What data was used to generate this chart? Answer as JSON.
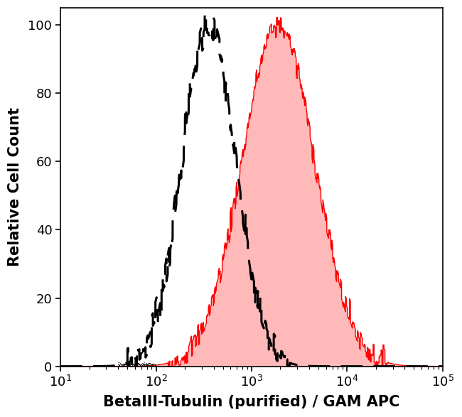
{
  "title": "",
  "xlabel": "BetaIII-Tubulin (purified) / GAM APC",
  "ylabel": "Relative Cell Count",
  "xlim_log": [
    1,
    5
  ],
  "ylim": [
    0,
    105
  ],
  "yticks": [
    0,
    20,
    40,
    60,
    80,
    100
  ],
  "background_color": "#ffffff",
  "dashed_color": "#000000",
  "red_fill_color": "#ff8080",
  "red_line_color": "#ff0000",
  "dashed_peak_log": 2.55,
  "red_peak_log": 3.28,
  "dashed_sigma": 0.28,
  "red_sigma": 0.38,
  "noise_seed": 7,
  "xlabel_fontsize": 15,
  "ylabel_fontsize": 15,
  "tick_fontsize": 13
}
